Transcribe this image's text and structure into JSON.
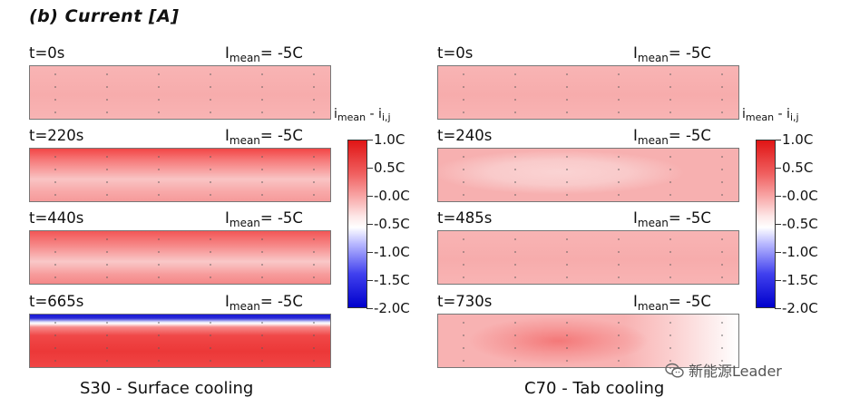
{
  "chart_data": {
    "type": "heatmap",
    "title": "(b) Current [A]",
    "colorbar": {
      "title": "i mean - i i,j",
      "ticks": [
        "1.0C",
        "0.5C",
        "-0.0C",
        "-0.5C",
        "-1.0C",
        "-1.5C",
        "-2.0C"
      ],
      "range": [
        -2.0,
        1.0
      ],
      "colors": [
        "#e01515",
        "#ffffff",
        "#0000cc"
      ]
    },
    "groups": [
      {
        "caption": "S30 -  Surface cooling",
        "panels": [
          {
            "time": "t=0s",
            "imean": "= -5C",
            "pattern": "uniform-light-red"
          },
          {
            "time": "t=220s",
            "imean": "= -5C",
            "pattern": "stronger-red-top-lighter-middle"
          },
          {
            "time": "t=440s",
            "imean": "= -5C",
            "pattern": "red-top-lighter-band-middle"
          },
          {
            "time": "t=665s",
            "imean": "= -5C",
            "pattern": "blue-top-edge-red-body"
          }
        ]
      },
      {
        "caption": "C70 - Tab cooling",
        "panels": [
          {
            "time": "t=0s",
            "imean": "= -5C",
            "pattern": "uniform-light-red"
          },
          {
            "time": "t=240s",
            "imean": "= -5C",
            "pattern": "light-red-lighter-center"
          },
          {
            "time": "t=485s",
            "imean": "= -5C",
            "pattern": "uniform-light-red"
          },
          {
            "time": "t=730s",
            "imean": "= -5C",
            "pattern": "red-center-fading-right"
          }
        ]
      }
    ]
  },
  "labels": {
    "i_prefix": "I",
    "i_sub": "mean",
    "cb_prefix": "i",
    "cb_sub1": "mean",
    "cb_mid": " - i",
    "cb_sub2": "i,j"
  },
  "watermark": {
    "text": "新能源Leader",
    "icon": "wechat-icon"
  }
}
